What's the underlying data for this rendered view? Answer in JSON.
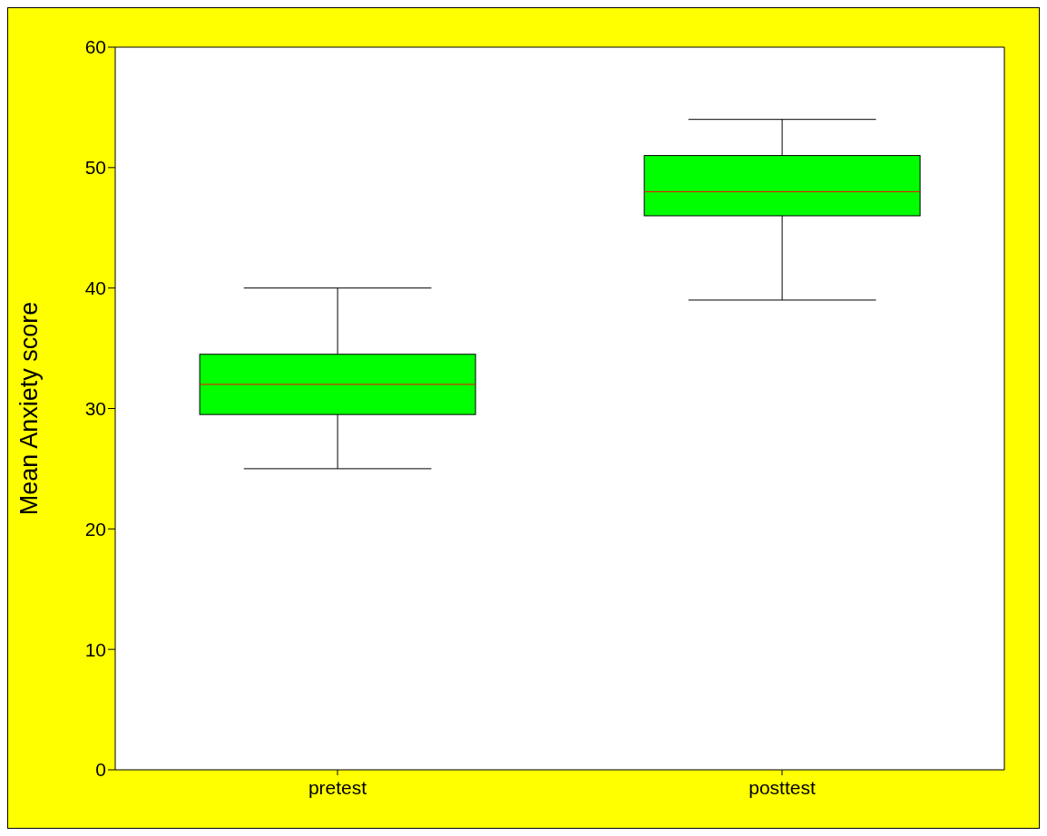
{
  "chart_data": {
    "type": "box",
    "ylabel": "Mean Anxiety score",
    "categories": [
      "pretest",
      "posttest"
    ],
    "color": "#00ff00",
    "boxes": [
      {
        "low": 25,
        "q1": 29.5,
        "median": 32,
        "q3": 34.5,
        "high": 40
      },
      {
        "low": 39,
        "q1": 46,
        "median": 48,
        "q3": 51,
        "high": 54
      }
    ],
    "ylim": [
      0,
      60
    ],
    "yticks": [
      0,
      10,
      20,
      30,
      40,
      50,
      60
    ]
  }
}
